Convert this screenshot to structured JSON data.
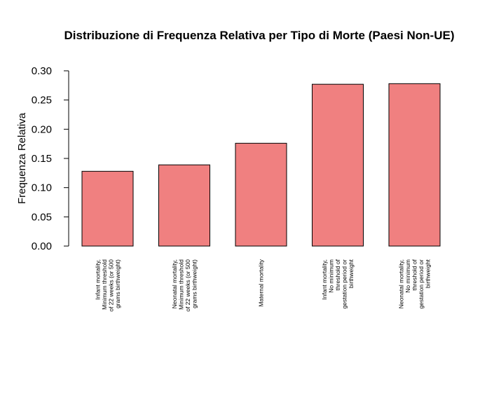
{
  "chart_data": {
    "type": "bar",
    "title": "Distribuzione di Frequenza Relativa per Tipo di Morte (Paesi Non-UE)",
    "xlabel": "",
    "ylabel": "Frequenza Relativa",
    "ylim": [
      0,
      0.3
    ],
    "yticks": [
      "0.00",
      "0.05",
      "0.10",
      "0.15",
      "0.20",
      "0.25",
      "0.30"
    ],
    "grid": false,
    "bar_color": "#F08080",
    "categories": [
      [
        "Infant mortality,",
        "Minimum threshold",
        "of 22 weeks (or 500",
        "grams birthweight)"
      ],
      [
        "Neonatal mortality,",
        "Minimum threshold",
        "of 22 weeks (or 500",
        "grams birthweight)"
      ],
      [
        "Maternal mortality"
      ],
      [
        "Infant mortality,",
        "No minimum",
        "threshold of",
        "gestation period or",
        "birthweight"
      ],
      [
        "Neonatal mortality,",
        "No minimum",
        "threshold of",
        "gestation period or",
        "birthweight"
      ]
    ],
    "values": [
      0.128,
      0.139,
      0.176,
      0.277,
      0.278
    ]
  }
}
